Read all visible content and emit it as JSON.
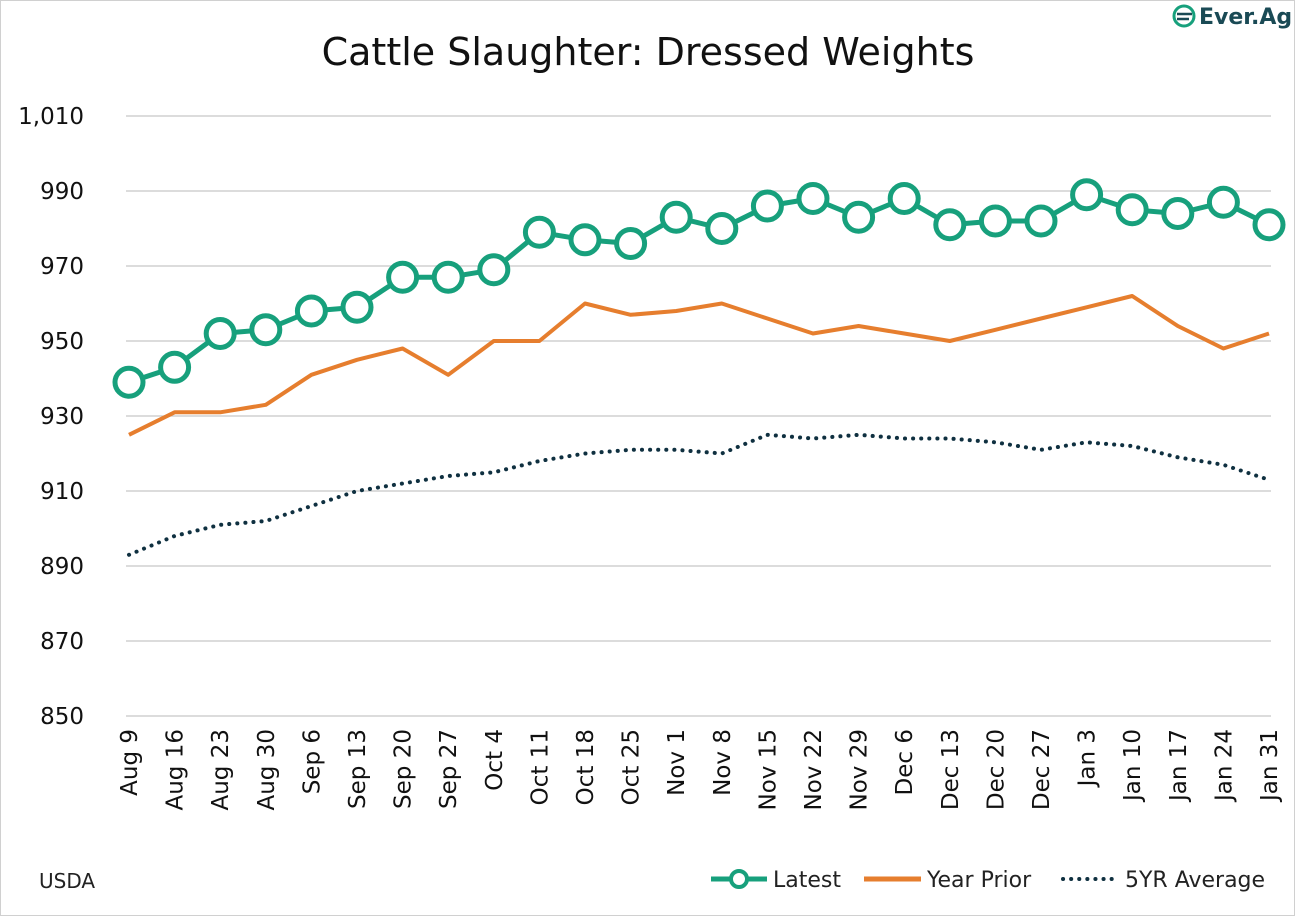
{
  "chart_data": {
    "type": "line",
    "title": "Cattle Slaughter: Dressed Weights",
    "xlabel": "",
    "ylabel": "",
    "ylim": [
      850,
      1010
    ],
    "yticks": [
      850,
      870,
      890,
      910,
      930,
      950,
      970,
      990,
      1010
    ],
    "ytick_labels": [
      "850",
      "870",
      "890",
      "910",
      "930",
      "950",
      "970",
      "990",
      "1,010"
    ],
    "categories": [
      "Aug 9",
      "Aug 16",
      "Aug 23",
      "Aug 30",
      "Sep 6",
      "Sep 13",
      "Sep 20",
      "Sep 27",
      "Oct 4",
      "Oct 11",
      "Oct 18",
      "Oct 25",
      "Nov 1",
      "Nov 8",
      "Nov 15",
      "Nov 22",
      "Nov 29",
      "Dec 6",
      "Dec 13",
      "Dec 20",
      "Dec 27",
      "Jan 3",
      "Jan 10",
      "Jan 17",
      "Jan 24",
      "Jan 31"
    ],
    "series": [
      {
        "name": "Latest",
        "color": "#17a07c",
        "style": "line-marker",
        "values": [
          939,
          943,
          952,
          953,
          958,
          959,
          967,
          967,
          969,
          979,
          977,
          976,
          983,
          980,
          986,
          988,
          983,
          988,
          981,
          982,
          982,
          989,
          985,
          984,
          987,
          981
        ]
      },
      {
        "name": "Year Prior",
        "color": "#e67e2e",
        "style": "line",
        "values": [
          925,
          931,
          931,
          933,
          941,
          945,
          948,
          941,
          950,
          950,
          960,
          957,
          958,
          960,
          956,
          952,
          954,
          952,
          950,
          953,
          956,
          959,
          962,
          954,
          948,
          952
        ]
      },
      {
        "name": "5YR Average",
        "color": "#0f3040",
        "style": "dotted",
        "values": [
          893,
          898,
          901,
          902,
          906,
          910,
          912,
          914,
          915,
          918,
          920,
          921,
          921,
          920,
          925,
          924,
          925,
          924,
          924,
          923,
          921,
          923,
          922,
          919,
          917,
          913
        ]
      }
    ],
    "grid": true,
    "legend_position": "bottom-right"
  },
  "source": "USDA",
  "brand": {
    "name": "Ever.Ag",
    "color": "#1a4a55"
  }
}
